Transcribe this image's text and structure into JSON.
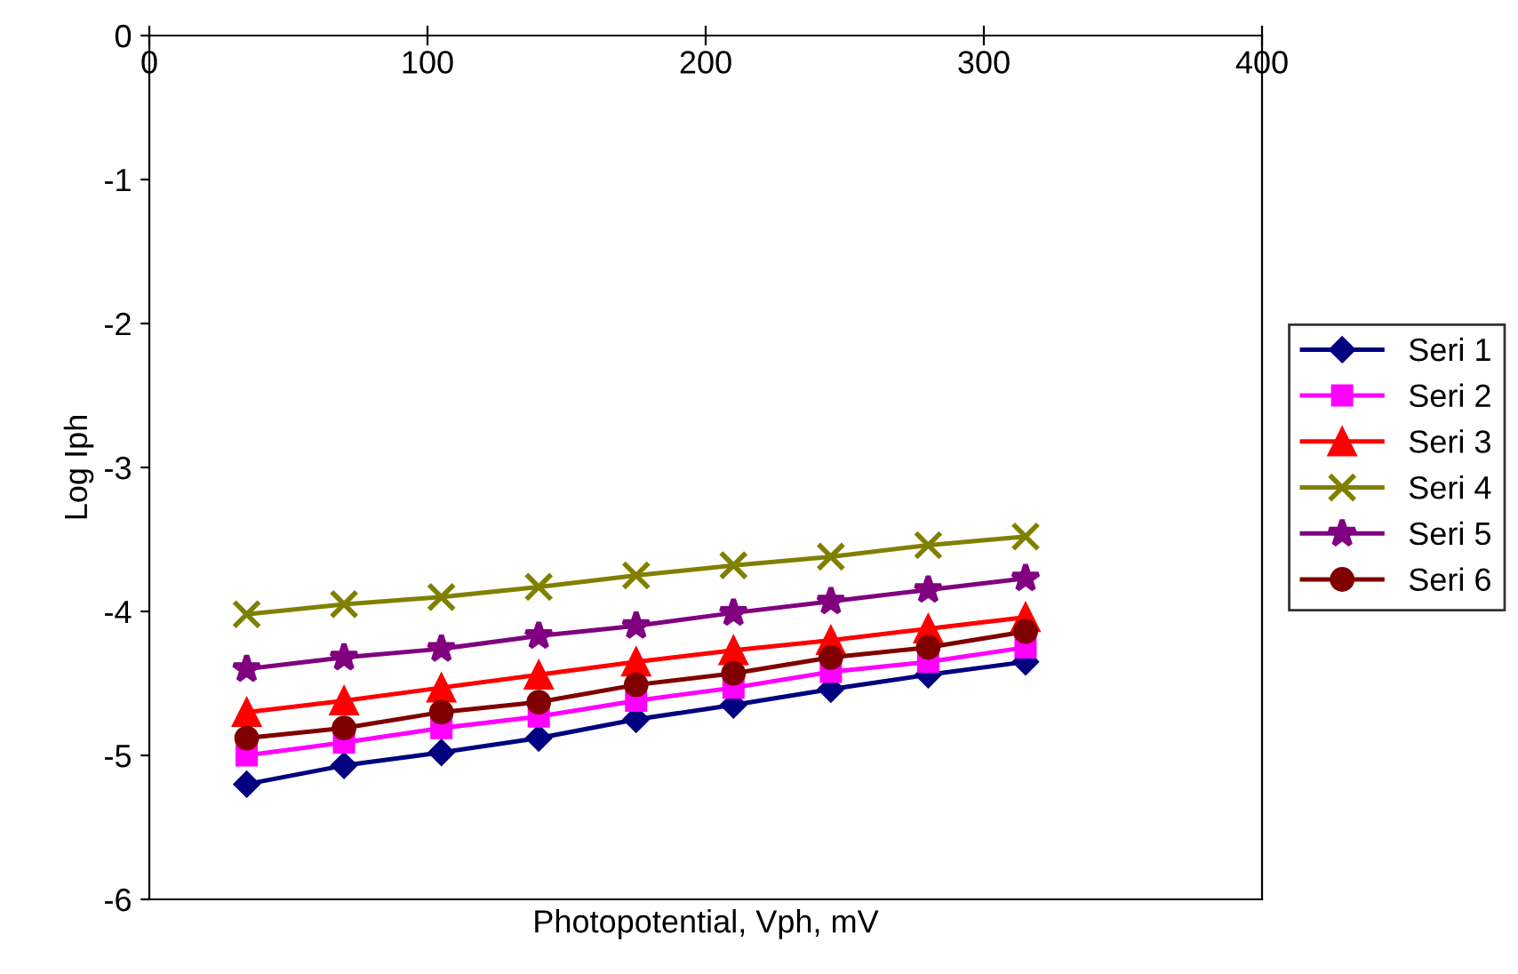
{
  "chart_data": {
    "type": "line",
    "xlabel": "Photopotential, Vph, mV",
    "ylabel": "Log Iph",
    "x": [
      35,
      70,
      105,
      140,
      175,
      210,
      245,
      280,
      315
    ],
    "xlim": [
      0,
      400
    ],
    "xticks": [
      0,
      100,
      200,
      300,
      400
    ],
    "ylim": [
      -6,
      0
    ],
    "yticks": [
      -6,
      -5,
      -4,
      -3,
      -2,
      -1,
      0
    ],
    "grid": false,
    "legend": "right",
    "series": [
      {
        "name": "Seri 1",
        "color": "#000080",
        "marker": "diamond",
        "values": [
          -5.2,
          -5.07,
          -4.98,
          -4.88,
          -4.75,
          -4.65,
          -4.54,
          -4.44,
          -4.35
        ]
      },
      {
        "name": "Seri 2",
        "color": "#ff00ff",
        "marker": "square",
        "values": [
          -5.0,
          -4.91,
          -4.81,
          -4.73,
          -4.62,
          -4.53,
          -4.42,
          -4.35,
          -4.25
        ]
      },
      {
        "name": "Seri 3",
        "color": "#ff0000",
        "marker": "triangle",
        "values": [
          -4.7,
          -4.62,
          -4.53,
          -4.44,
          -4.35,
          -4.27,
          -4.2,
          -4.12,
          -4.04
        ]
      },
      {
        "name": "Seri 4",
        "color": "#808000",
        "marker": "cross",
        "values": [
          -4.02,
          -3.95,
          -3.9,
          -3.83,
          -3.75,
          -3.68,
          -3.62,
          -3.54,
          -3.48
        ]
      },
      {
        "name": "Seri 5",
        "color": "#800080",
        "marker": "star",
        "values": [
          -4.4,
          -4.32,
          -4.26,
          -4.17,
          -4.1,
          -4.01,
          -3.93,
          -3.85,
          -3.77
        ]
      },
      {
        "name": "Seri 6",
        "color": "#800000",
        "marker": "circle",
        "values": [
          -4.88,
          -4.81,
          -4.7,
          -4.63,
          -4.51,
          -4.43,
          -4.32,
          -4.25,
          -4.14
        ]
      }
    ]
  }
}
